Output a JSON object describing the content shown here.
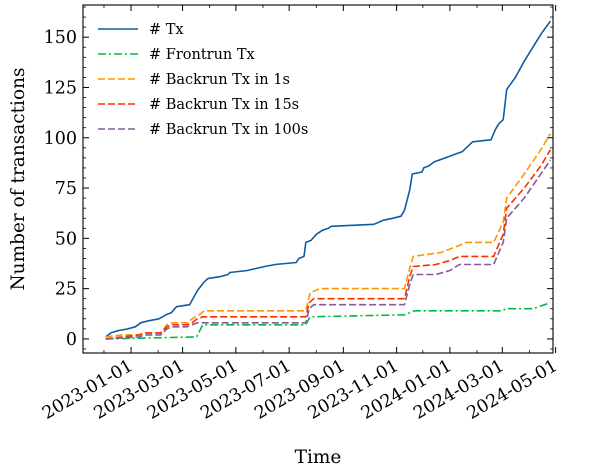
{
  "chart_data": {
    "type": "line",
    "title": "",
    "xlabel": "Time",
    "ylabel": "Number of transactions",
    "x_ticks": [
      "2023-01-01",
      "2023-03-01",
      "2023-05-01",
      "2023-07-01",
      "2023-09-01",
      "2023-11-01",
      "2024-01-01",
      "2024-03-01",
      "2024-05-01"
    ],
    "y_ticks": [
      0,
      25,
      50,
      75,
      100,
      125,
      150
    ],
    "xlim": [
      "2022-11-07",
      "2024-04-28"
    ],
    "ylim": [
      -7,
      166
    ],
    "grid": false,
    "legend_position": "top-left",
    "series": [
      {
        "name": "# Tx",
        "color": "#0C5DA5",
        "dash": "solid",
        "points": [
          [
            "2022-12-03",
            1
          ],
          [
            "2022-12-09",
            3
          ],
          [
            "2022-12-16",
            4
          ],
          [
            "2022-12-28",
            5
          ],
          [
            "2023-01-06",
            6
          ],
          [
            "2023-01-12",
            8
          ],
          [
            "2023-01-21",
            9
          ],
          [
            "2023-02-02",
            10
          ],
          [
            "2023-02-10",
            12
          ],
          [
            "2023-02-16",
            13
          ],
          [
            "2023-02-22",
            16
          ],
          [
            "2023-03-09",
            17
          ],
          [
            "2023-03-18",
            24
          ],
          [
            "2023-03-25",
            28
          ],
          [
            "2023-03-30",
            30
          ],
          [
            "2023-04-13",
            31
          ],
          [
            "2023-04-22",
            32
          ],
          [
            "2023-04-24",
            33
          ],
          [
            "2023-05-14",
            34
          ],
          [
            "2023-06-03",
            36
          ],
          [
            "2023-06-15",
            37
          ],
          [
            "2023-07-09",
            38
          ],
          [
            "2023-07-12",
            40
          ],
          [
            "2023-07-18",
            41
          ],
          [
            "2023-07-20",
            48
          ],
          [
            "2023-07-26",
            49
          ],
          [
            "2023-08-01",
            52
          ],
          [
            "2023-08-08",
            54
          ],
          [
            "2023-08-15",
            55
          ],
          [
            "2023-08-18",
            56
          ],
          [
            "2023-10-06",
            57
          ],
          [
            "2023-10-17",
            59
          ],
          [
            "2023-10-28",
            60
          ],
          [
            "2023-11-06",
            61
          ],
          [
            "2023-11-10",
            64
          ],
          [
            "2023-11-16",
            74
          ],
          [
            "2023-11-19",
            82
          ],
          [
            "2023-11-30",
            83
          ],
          [
            "2023-12-02",
            85
          ],
          [
            "2023-12-08",
            86
          ],
          [
            "2023-12-14",
            88
          ],
          [
            "2024-01-02",
            91
          ],
          [
            "2024-01-08",
            92
          ],
          [
            "2024-01-15",
            93
          ],
          [
            "2024-01-27",
            98
          ],
          [
            "2024-02-17",
            99
          ],
          [
            "2024-02-22",
            104
          ],
          [
            "2024-02-26",
            107
          ],
          [
            "2024-03-02",
            109
          ],
          [
            "2024-03-06",
            124
          ],
          [
            "2024-03-16",
            130
          ],
          [
            "2024-03-26",
            138
          ],
          [
            "2024-04-05",
            145
          ],
          [
            "2024-04-15",
            152
          ],
          [
            "2024-04-25",
            158
          ]
        ]
      },
      {
        "name": "# Frontrun Tx",
        "color": "#00B945",
        "dash": "dashdot",
        "points": [
          [
            "2022-12-03",
            0
          ],
          [
            "2023-03-17",
            1
          ],
          [
            "2023-03-24",
            7
          ],
          [
            "2023-07-20",
            7
          ],
          [
            "2023-07-25",
            11
          ],
          [
            "2023-11-10",
            12
          ],
          [
            "2023-11-22",
            14
          ],
          [
            "2024-03-01",
            14
          ],
          [
            "2024-03-05",
            15
          ],
          [
            "2024-04-05",
            15
          ],
          [
            "2024-04-25",
            18
          ]
        ]
      },
      {
        "name": "# Backrun Tx in 1s",
        "color": "#FF9500",
        "dash": "dashed",
        "points": [
          [
            "2022-12-03",
            1
          ],
          [
            "2022-12-22",
            2
          ],
          [
            "2023-01-12",
            2
          ],
          [
            "2023-01-17",
            3
          ],
          [
            "2023-02-04",
            3
          ],
          [
            "2023-02-11",
            7
          ],
          [
            "2023-02-18",
            8
          ],
          [
            "2023-03-06",
            8
          ],
          [
            "2023-03-12",
            10
          ],
          [
            "2023-03-20",
            12
          ],
          [
            "2023-03-26",
            14
          ],
          [
            "2023-07-20",
            14
          ],
          [
            "2023-07-25",
            23
          ],
          [
            "2023-08-05",
            25
          ],
          [
            "2023-11-10",
            25
          ],
          [
            "2023-11-16",
            35
          ],
          [
            "2023-11-20",
            41
          ],
          [
            "2023-12-22",
            43
          ],
          [
            "2024-01-03",
            45
          ],
          [
            "2024-01-20",
            48
          ],
          [
            "2024-02-20",
            48
          ],
          [
            "2024-03-02",
            58
          ],
          [
            "2024-03-06",
            70
          ],
          [
            "2024-03-26",
            82
          ],
          [
            "2024-04-14",
            94
          ],
          [
            "2024-04-25",
            102
          ]
        ]
      },
      {
        "name": "# Backrun Tx in 15s",
        "color": "#FF2C00",
        "dash": "dashed",
        "points": [
          [
            "2022-12-03",
            0
          ],
          [
            "2022-12-22",
            1
          ],
          [
            "2023-01-10",
            2
          ],
          [
            "2023-01-17",
            3
          ],
          [
            "2023-02-04",
            3
          ],
          [
            "2023-02-11",
            6
          ],
          [
            "2023-02-17",
            7
          ],
          [
            "2023-03-06",
            7
          ],
          [
            "2023-03-12",
            8
          ],
          [
            "2023-03-18",
            10
          ],
          [
            "2023-03-24",
            11
          ],
          [
            "2023-07-20",
            11
          ],
          [
            "2023-07-24",
            18
          ],
          [
            "2023-07-29",
            20
          ],
          [
            "2023-11-10",
            20
          ],
          [
            "2023-11-16",
            31
          ],
          [
            "2023-11-20",
            36
          ],
          [
            "2023-12-16",
            37
          ],
          [
            "2024-01-01",
            39
          ],
          [
            "2024-01-12",
            41
          ],
          [
            "2024-02-20",
            41
          ],
          [
            "2024-03-02",
            52
          ],
          [
            "2024-03-06",
            65
          ],
          [
            "2024-03-26",
            75
          ],
          [
            "2024-04-14",
            86
          ],
          [
            "2024-04-25",
            94
          ]
        ]
      },
      {
        "name": "# Backrun Tx in 100s",
        "color": "#845B97",
        "dash": "dashed",
        "points": [
          [
            "2022-12-03",
            0
          ],
          [
            "2023-01-10",
            1
          ],
          [
            "2023-01-17",
            2
          ],
          [
            "2023-02-04",
            2
          ],
          [
            "2023-02-11",
            5
          ],
          [
            "2023-02-17",
            6
          ],
          [
            "2023-03-06",
            6
          ],
          [
            "2023-03-12",
            7
          ],
          [
            "2023-03-18",
            8
          ],
          [
            "2023-07-20",
            8
          ],
          [
            "2023-07-24",
            15
          ],
          [
            "2023-07-29",
            17
          ],
          [
            "2023-11-10",
            17
          ],
          [
            "2023-11-16",
            27
          ],
          [
            "2023-11-20",
            32
          ],
          [
            "2023-12-16",
            32
          ],
          [
            "2024-01-01",
            34
          ],
          [
            "2024-01-12",
            37
          ],
          [
            "2024-02-20",
            37
          ],
          [
            "2024-03-02",
            48
          ],
          [
            "2024-03-06",
            60
          ],
          [
            "2024-03-26",
            70
          ],
          [
            "2024-04-14",
            82
          ],
          [
            "2024-04-25",
            89
          ]
        ]
      }
    ]
  }
}
